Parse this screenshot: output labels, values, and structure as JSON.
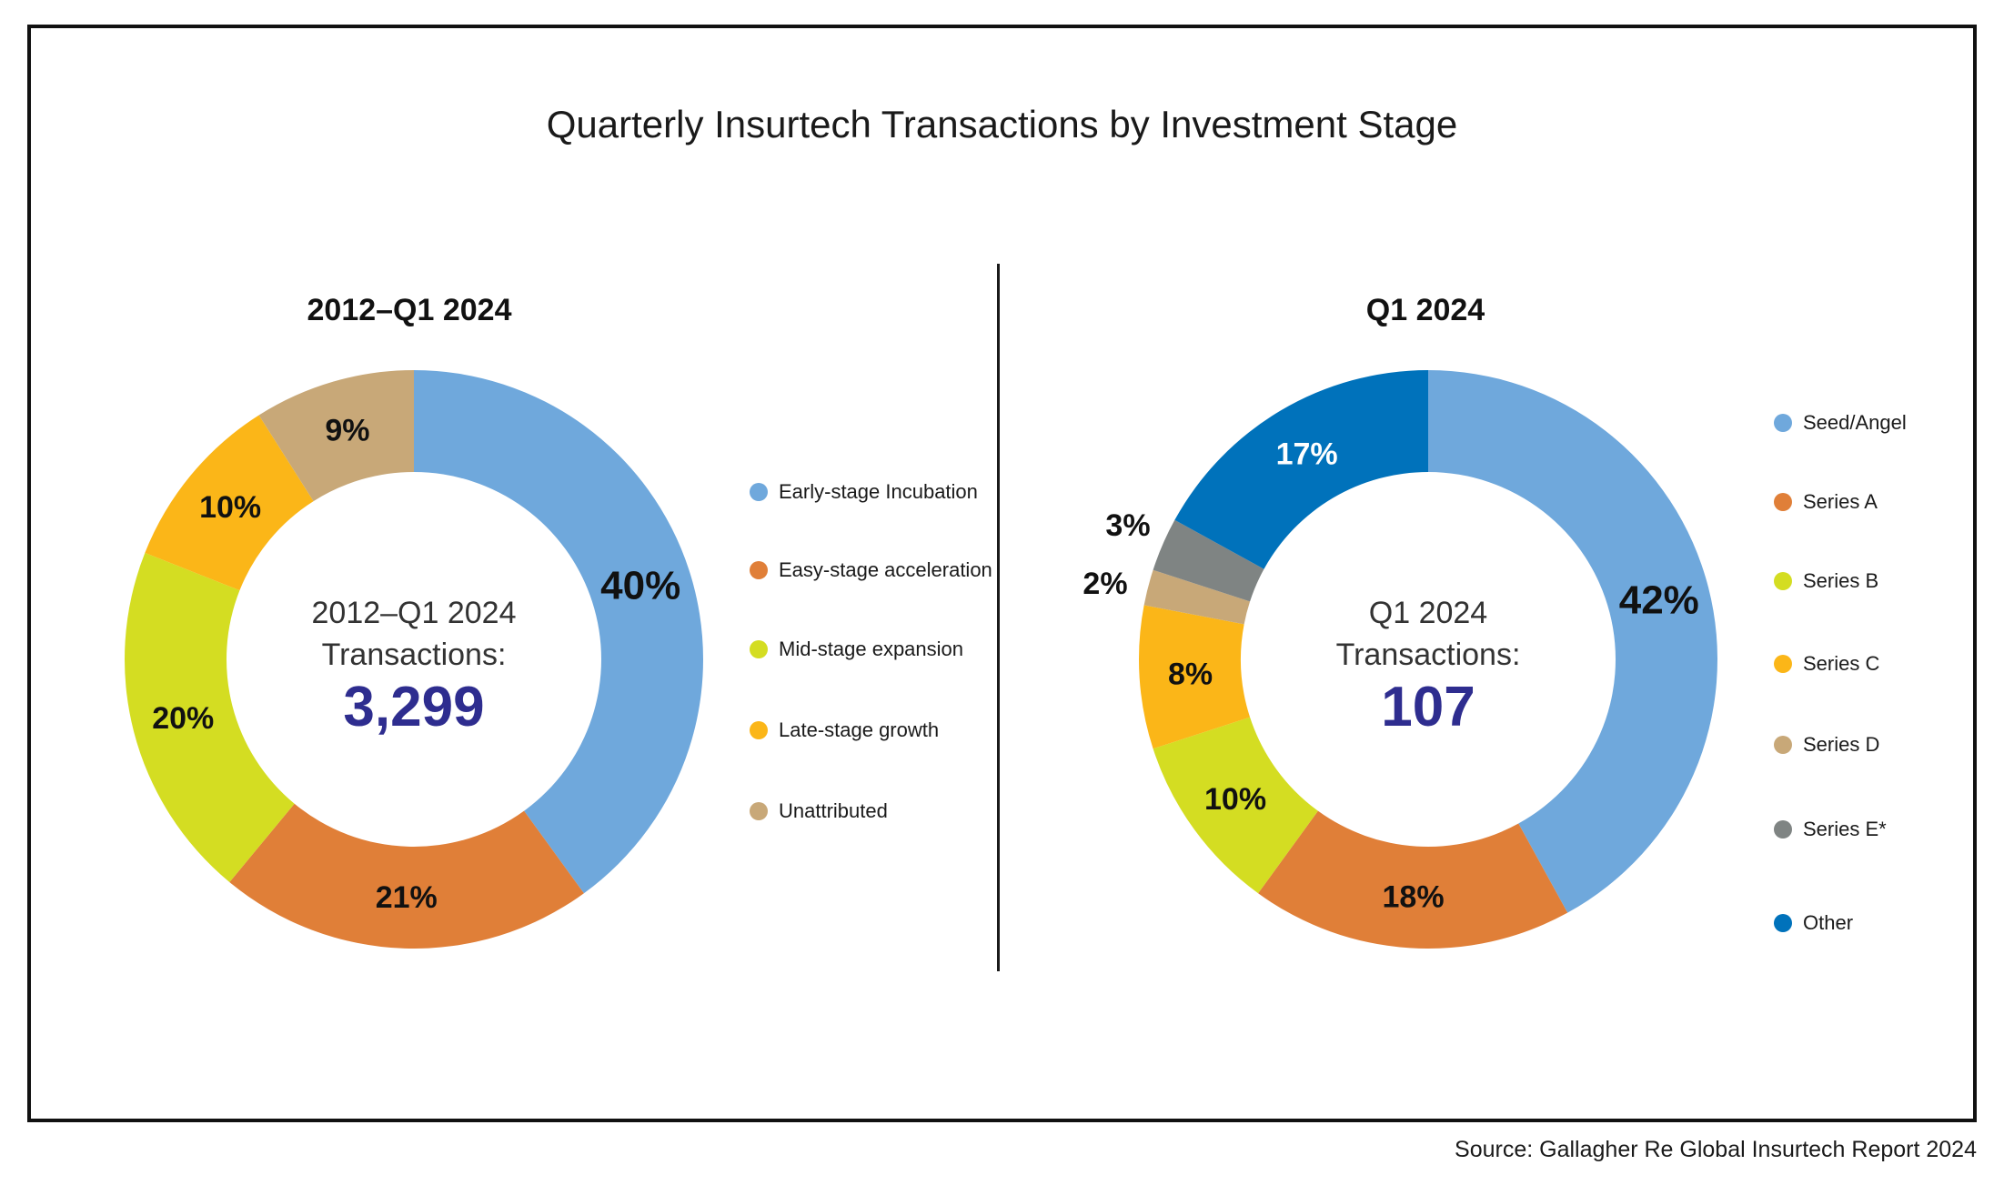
{
  "title": "Quarterly Insurtech Transactions by Investment Stage",
  "source": "Source: Gallagher Re Global Insurtech Report 2024",
  "chart_data": [
    {
      "type": "pie",
      "title": "2012–Q1 2024",
      "center_label_line1": "2012–Q1 2024",
      "center_label_line2": "Transactions:",
      "center_value": "3,299",
      "legend_position": "right",
      "categories": [
        "Early-stage Incubation",
        "Easy-stage acceleration",
        "Mid-stage expansion",
        "Late-stage growth",
        "Unattributed"
      ],
      "values": [
        40,
        21,
        20,
        10,
        9
      ],
      "labels": [
        "40%",
        "21%",
        "20%",
        "10%",
        "9%"
      ],
      "colors": [
        "#6fa8dc",
        "#e07f38",
        "#d4dd22",
        "#fbb618",
        "#c8a878"
      ]
    },
    {
      "type": "pie",
      "title": "Q1 2024",
      "center_label_line1": "Q1 2024",
      "center_label_line2": "Transactions:",
      "center_value": "107",
      "legend_position": "right",
      "categories": [
        "Seed/Angel",
        "Series A",
        "Series B",
        "Series C",
        "Series D",
        "Series E*",
        "Other"
      ],
      "values": [
        42,
        18,
        10,
        8,
        2,
        3,
        17
      ],
      "labels": [
        "42%",
        "18%",
        "10%",
        "8%",
        "2%",
        "3%",
        "17%"
      ],
      "colors": [
        "#6fa8dc",
        "#e07f38",
        "#d4dd22",
        "#fbb618",
        "#c8a878",
        "#7f8483",
        "#0072bb"
      ]
    }
  ]
}
